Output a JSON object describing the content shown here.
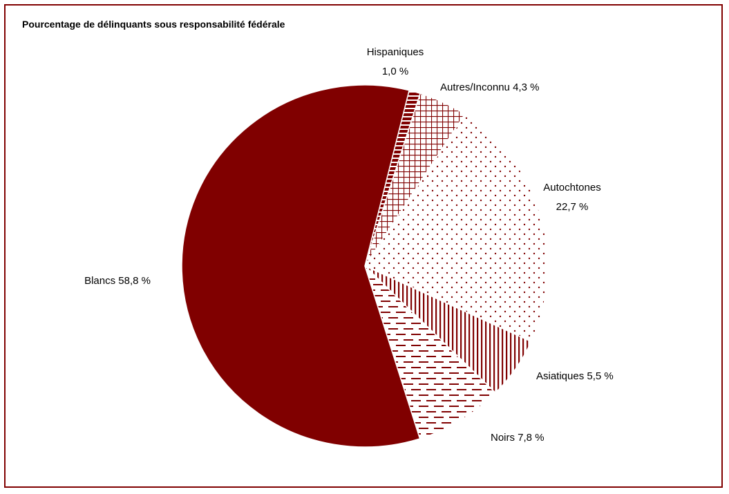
{
  "chart_data": {
    "type": "pie",
    "title": "Pourcentage de délinquants sous responsabilité fédérale",
    "slices": [
      {
        "name": "Hispaniques",
        "value": 1.0,
        "value_label": "1,0 %",
        "pattern": "diamonds",
        "label_layout": "two-line"
      },
      {
        "name": "Autres/Inconnu",
        "value": 4.3,
        "value_label": "4,3 %",
        "pattern": "grid",
        "label_layout": "one-line"
      },
      {
        "name": "Autochtones",
        "value": 22.7,
        "value_label": "22,7 %",
        "pattern": "dots",
        "label_layout": "two-line"
      },
      {
        "name": "Asiatiques",
        "value": 5.5,
        "value_label": "5,5 %",
        "pattern": "vertical-lines",
        "label_layout": "one-line"
      },
      {
        "name": "Noirs",
        "value": 7.8,
        "value_label": "7,8 %",
        "pattern": "dashes",
        "label_layout": "one-line"
      },
      {
        "name": "Blancs",
        "value": 58.8,
        "value_label": "58,8 %",
        "pattern": "solid",
        "label_layout": "one-line"
      }
    ],
    "colors": {
      "accent": "#800000",
      "background": "#ffffff",
      "text": "#000000"
    },
    "legend": "none"
  }
}
